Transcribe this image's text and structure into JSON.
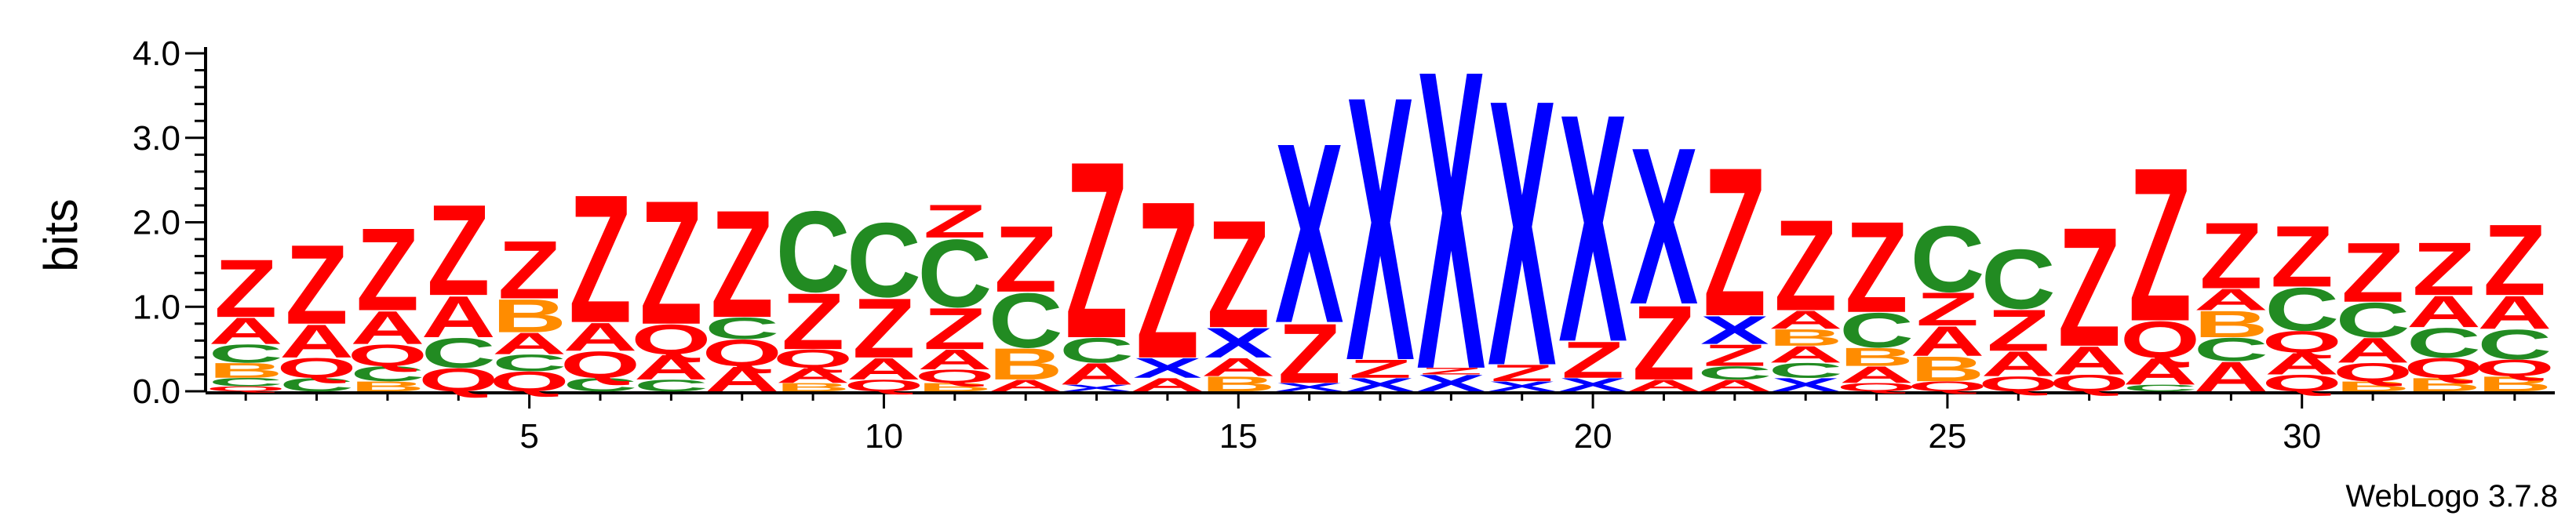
{
  "chart_data": {
    "type": "sequence_logo",
    "ylabel": "bits",
    "ylim": [
      0,
      4.0
    ],
    "y_ticks": [
      "0.0",
      "1.0",
      "2.0",
      "3.0",
      "4.0"
    ],
    "x_ticks": [
      "5",
      "10",
      "15",
      "20",
      "25",
      "30"
    ],
    "x_tick_positions": [
      5,
      10,
      15,
      20,
      25,
      30
    ],
    "footer": "WebLogo 3.7.8",
    "colors": {
      "Z": "#ff0000",
      "A": "#ff0000",
      "Q": "#ff0000",
      "C": "#228b22",
      "B": "#ff8c00",
      "X": "#0000ff"
    },
    "positions": [
      [
        [
          "Q",
          0.06
        ],
        [
          "C",
          0.1
        ],
        [
          "B",
          0.18
        ],
        [
          "C",
          0.22
        ],
        [
          "A",
          0.32
        ],
        [
          "Z",
          0.7
        ]
      ],
      [
        [
          "C",
          0.16
        ],
        [
          "Q",
          0.24
        ],
        [
          "A",
          0.4
        ],
        [
          "Z",
          0.96
        ]
      ],
      [
        [
          "B",
          0.12
        ],
        [
          "C",
          0.18
        ],
        [
          "Q",
          0.26
        ],
        [
          "A",
          0.4
        ],
        [
          "Z",
          1.0
        ]
      ],
      [
        [
          "Q",
          0.28
        ],
        [
          "C",
          0.36
        ],
        [
          "A",
          0.5
        ],
        [
          "Z",
          1.1
        ]
      ],
      [
        [
          "Q",
          0.24
        ],
        [
          "C",
          0.2
        ],
        [
          "A",
          0.26
        ],
        [
          "B",
          0.4
        ],
        [
          "Z",
          0.7
        ]
      ],
      [
        [
          "C",
          0.16
        ],
        [
          "Q",
          0.32
        ],
        [
          "A",
          0.34
        ],
        [
          "Z",
          1.55
        ]
      ],
      [
        [
          "C",
          0.14
        ],
        [
          "A",
          0.3
        ],
        [
          "Q",
          0.36
        ],
        [
          "Z",
          1.5
        ]
      ],
      [
        [
          "A",
          0.3
        ],
        [
          "Q",
          0.32
        ],
        [
          "C",
          0.26
        ],
        [
          "Z",
          1.3
        ]
      ],
      [
        [
          "B",
          0.1
        ],
        [
          "A",
          0.18
        ],
        [
          "Q",
          0.22
        ],
        [
          "Z",
          0.68
        ],
        [
          "C",
          0.98
        ]
      ],
      [
        [
          "Q",
          0.14
        ],
        [
          "A",
          0.26
        ],
        [
          "Z",
          0.72
        ],
        [
          "C",
          0.9
        ]
      ],
      [
        [
          "B",
          0.1
        ],
        [
          "Q",
          0.16
        ],
        [
          "A",
          0.24
        ],
        [
          "Z",
          0.5
        ],
        [
          "C",
          0.82
        ],
        [
          "Z",
          0.4
        ]
      ],
      [
        [
          "A",
          0.14
        ],
        [
          "B",
          0.38
        ],
        [
          "C",
          0.66
        ],
        [
          "Z",
          0.8
        ]
      ],
      [
        [
          "X",
          0.08
        ],
        [
          "A",
          0.26
        ],
        [
          "C",
          0.3
        ],
        [
          "Z",
          2.14
        ]
      ],
      [
        [
          "A",
          0.16
        ],
        [
          "X",
          0.24
        ],
        [
          "Z",
          1.9
        ]
      ],
      [
        [
          "B",
          0.18
        ],
        [
          "A",
          0.22
        ],
        [
          "X",
          0.36
        ],
        [
          "Z",
          1.3
        ]
      ],
      [
        [
          "X",
          0.1
        ],
        [
          "Z",
          0.72
        ],
        [
          "X",
          2.18
        ]
      ],
      [
        [
          "X",
          0.16
        ],
        [
          "Z",
          0.22
        ],
        [
          "X",
          3.2
        ]
      ],
      [
        [
          "X",
          0.2
        ],
        [
          "Z",
          0.08
        ],
        [
          "X",
          3.62
        ]
      ],
      [
        [
          "X",
          0.12
        ],
        [
          "Z",
          0.2
        ],
        [
          "X",
          3.22
        ]
      ],
      [
        [
          "X",
          0.16
        ],
        [
          "Z",
          0.44
        ],
        [
          "X",
          2.76
        ]
      ],
      [
        [
          "A",
          0.14
        ],
        [
          "Z",
          0.9
        ],
        [
          "X",
          1.9
        ]
      ],
      [
        [
          "A",
          0.14
        ],
        [
          "C",
          0.16
        ],
        [
          "Z",
          0.26
        ],
        [
          "X",
          0.34
        ],
        [
          "Z",
          1.8
        ]
      ],
      [
        [
          "X",
          0.16
        ],
        [
          "C",
          0.18
        ],
        [
          "A",
          0.2
        ],
        [
          "B",
          0.2
        ],
        [
          "A",
          0.22
        ],
        [
          "Z",
          1.1
        ]
      ],
      [
        [
          "Q",
          0.1
        ],
        [
          "A",
          0.2
        ],
        [
          "B",
          0.22
        ],
        [
          "C",
          0.42
        ],
        [
          "Z",
          1.1
        ]
      ],
      [
        [
          "Q",
          0.12
        ],
        [
          "B",
          0.3
        ],
        [
          "A",
          0.36
        ],
        [
          "Z",
          0.4
        ],
        [
          "C",
          0.8
        ]
      ],
      [
        [
          "Q",
          0.18
        ],
        [
          "A",
          0.3
        ],
        [
          "Z",
          0.5
        ],
        [
          "C",
          0.72
        ]
      ],
      [
        [
          "Q",
          0.2
        ],
        [
          "A",
          0.34
        ],
        [
          "Z",
          1.44
        ]
      ],
      [
        [
          "C",
          0.08
        ],
        [
          "A",
          0.32
        ],
        [
          "Q",
          0.44
        ],
        [
          "Z",
          1.86
        ]
      ],
      [
        [
          "A",
          0.36
        ],
        [
          "C",
          0.28
        ],
        [
          "B",
          0.32
        ],
        [
          "A",
          0.26
        ],
        [
          "Z",
          0.8
        ]
      ],
      [
        [
          "Q",
          0.2
        ],
        [
          "A",
          0.26
        ],
        [
          "Q",
          0.26
        ],
        [
          "C",
          0.52
        ],
        [
          "Z",
          0.74
        ]
      ],
      [
        [
          "B",
          0.12
        ],
        [
          "Q",
          0.22
        ],
        [
          "A",
          0.3
        ],
        [
          "C",
          0.42
        ],
        [
          "Z",
          0.72
        ]
      ],
      [
        [
          "B",
          0.16
        ],
        [
          "Q",
          0.24
        ],
        [
          "C",
          0.36
        ],
        [
          "A",
          0.38
        ],
        [
          "Z",
          0.64
        ]
      ],
      [
        [
          "B",
          0.18
        ],
        [
          "Q",
          0.2
        ],
        [
          "C",
          0.36
        ],
        [
          "A",
          0.4
        ],
        [
          "Z",
          0.86
        ]
      ]
    ]
  }
}
